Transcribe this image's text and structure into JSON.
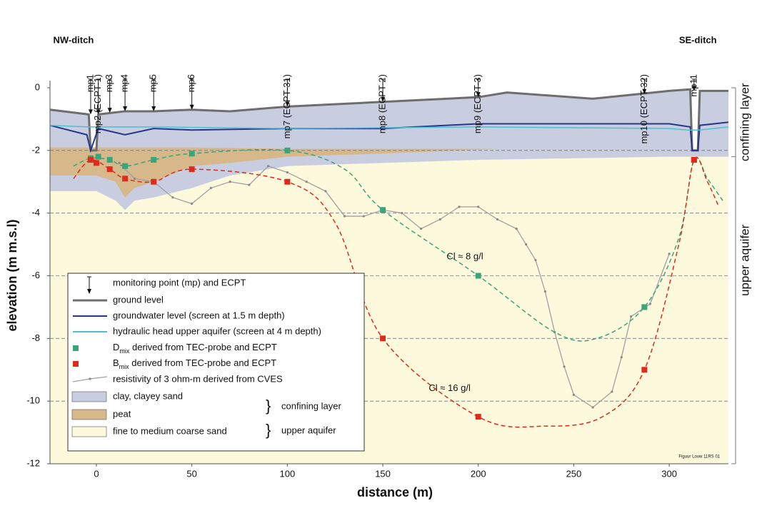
{
  "chart_data": {
    "type": "cross-section",
    "xlabel": "distance (m)",
    "ylabel": "elevation (m m.s.l)",
    "xlim": [
      -24.3,
      331
    ],
    "ylim": [
      -12,
      0
    ],
    "xticks": [
      0,
      50,
      100,
      150,
      200,
      250,
      300
    ],
    "yticks": [
      0,
      -2,
      -4,
      -6,
      -8,
      -10,
      -12
    ],
    "grid": true,
    "ditch_labels": [
      {
        "text": "NW-ditch",
        "x": -12
      },
      {
        "text": "SE-ditch",
        "x": 315
      }
    ],
    "monitoring_points": {
      "legend": "monitoring point (mp) and ECPT",
      "labels": [
        "mp1",
        "mp2 (ECPT-1)",
        "mp3",
        "mp4",
        "mp5",
        "mp6",
        "mp7 (ECPT-31)",
        "mp8 (ECPT-2)",
        "mp9 (ECPT-3)",
        "mp10 (ECPT-32)",
        "mp11"
      ],
      "x": [
        -3,
        1,
        7,
        15,
        30,
        50,
        100,
        150,
        200,
        287,
        313
      ],
      "values": [
        -0.85,
        -0.85,
        -0.8,
        -0.75,
        -0.75,
        -0.7,
        -0.6,
        -0.45,
        -0.3,
        -0.2,
        -0.1
      ]
    },
    "series": [
      {
        "name": "ground level",
        "kind": "line",
        "color": "#6e6e6e",
        "x": [
          -24.3,
          -4,
          -3,
          0,
          1,
          15,
          30,
          50,
          70,
          100,
          150,
          200,
          215,
          260,
          300,
          311,
          312,
          315,
          316,
          331
        ],
        "values": [
          -0.7,
          -0.85,
          -2,
          -2,
          -0.85,
          -0.75,
          -0.75,
          -0.7,
          -0.75,
          -0.6,
          -0.45,
          -0.3,
          -0.15,
          -0.35,
          -0.1,
          -0.05,
          -2,
          -2,
          -0.1,
          -0.1
        ]
      },
      {
        "name": "groundwater level (screen at 1.5 m depth)",
        "kind": "line",
        "color": "#27368a",
        "x": [
          -24.3,
          -5,
          -3,
          1,
          8,
          15,
          30,
          50,
          100,
          150,
          200,
          300,
          311,
          312,
          315,
          316,
          331
        ],
        "values": [
          -1.2,
          -1.5,
          -2,
          -1.3,
          -1.4,
          -1.5,
          -1.3,
          -1.35,
          -1.3,
          -1.3,
          -1.15,
          -1.15,
          -1.25,
          -2,
          -2,
          -1.2,
          -1.1
        ]
      },
      {
        "name": "hydraulic head upper aquifer (screen at 4 m depth)",
        "kind": "line",
        "color": "#4cc0d2",
        "x": [
          -24.3,
          -4,
          0,
          30,
          100,
          200,
          300,
          310,
          316,
          331
        ],
        "values": [
          -1.2,
          -1.25,
          -1.25,
          -1.25,
          -1.3,
          -1.25,
          -1.3,
          -1.35,
          -1.35,
          -1.25
        ]
      },
      {
        "name": [
          "D",
          "mix",
          " derived from TEC-probe and ECPT"
        ],
        "kind": "points",
        "color": "#3aa57a",
        "x": [
          -3,
          1,
          7,
          15,
          30,
          50,
          100,
          150,
          200,
          287,
          313
        ],
        "values": [
          -2.25,
          -2.2,
          -2.3,
          -2.5,
          -2.3,
          -2.1,
          -2.0,
          -3.9,
          -6.0,
          -7.0,
          -2.3
        ]
      },
      {
        "name": [
          "B",
          "mix",
          " derived from TEC-probe and ECPT"
        ],
        "kind": "points",
        "color": "#e02a1a",
        "x": [
          -3,
          0,
          7,
          15,
          30,
          50,
          100,
          150,
          200,
          287,
          313
        ],
        "values": [
          -2.3,
          -2.4,
          -2.6,
          -2.9,
          -3.0,
          -2.6,
          -3.0,
          -8.0,
          -10.5,
          -9.0,
          -2.3
        ]
      },
      {
        "name": "resistivity of 3 ohm-m derived from CVES",
        "kind": "dotline",
        "color": "#a0a0a0",
        "x": [
          12,
          20,
          30,
          40,
          50,
          60,
          70,
          80,
          90,
          100,
          110,
          120,
          130,
          140,
          150,
          160,
          170,
          180,
          190,
          200,
          210,
          220,
          225,
          230,
          235,
          240,
          245,
          250,
          260,
          270,
          275,
          280,
          290,
          300
        ],
        "values": [
          -2.4,
          -2.9,
          -3.0,
          -3.5,
          -3.7,
          -3.2,
          -3.0,
          -3.1,
          -2.5,
          -2.7,
          -3.0,
          -3.3,
          -4.1,
          -4.1,
          -3.9,
          -4.0,
          -4.5,
          -4.2,
          -3.8,
          -3.8,
          -4.2,
          -4.5,
          -5.0,
          -5.5,
          -6.5,
          -7.8,
          -8.9,
          -9.8,
          -10.2,
          -9.7,
          -8.6,
          -7.3,
          -6.9,
          -5.3
        ]
      },
      {
        "name": "clay, clayey sand",
        "kind": "area",
        "color": "#c8cde0",
        "x": [
          -24.3,
          -4,
          -3,
          0,
          1,
          15,
          30,
          50,
          70,
          100,
          150,
          200,
          215,
          260,
          300,
          311,
          312,
          315,
          316,
          331,
          331,
          300,
          250,
          200,
          150,
          100,
          70,
          50,
          30,
          20,
          15,
          10,
          0,
          -10,
          -24.3
        ],
        "values": [
          -0.7,
          -0.85,
          -2,
          -2,
          -0.85,
          -0.75,
          -0.75,
          -0.7,
          -0.75,
          -0.6,
          -0.45,
          -0.3,
          -0.15,
          -0.35,
          -0.1,
          -0.05,
          -2,
          -2,
          -0.1,
          -0.1,
          -2.2,
          -2.2,
          -2.25,
          -2.3,
          -2.4,
          -2.5,
          -2.8,
          -3.2,
          -3.5,
          -3.6,
          -3.9,
          -3.6,
          -3.3,
          -3.3,
          -3.3
        ]
      },
      {
        "name": "peat",
        "kind": "area",
        "color": "#d6b88a",
        "x": [
          -24.3,
          0,
          50,
          100,
          150,
          210,
          150,
          100,
          70,
          50,
          30,
          20,
          15,
          10,
          0,
          -24.3
        ],
        "values": [
          -1.9,
          -1.9,
          -1.9,
          -1.95,
          -1.95,
          -1.95,
          -2.1,
          -2.2,
          -2.4,
          -2.5,
          -3.0,
          -3.2,
          -3.5,
          -3.0,
          -2.8,
          -2.8
        ]
      },
      {
        "name": "fine to medium coarse sand",
        "kind": "area",
        "color": "#fdf9dc",
        "x": [
          -24.3,
          331,
          331,
          -24.3
        ],
        "values": [
          -1.9,
          -1.9,
          -12,
          -12
        ]
      }
    ],
    "mixing_curves": [
      {
        "color": "#3aa57a",
        "x": [
          -12,
          -3,
          7,
          15,
          30,
          50,
          100,
          130,
          150,
          200,
          240,
          262,
          287,
          305,
          313,
          320,
          328
        ],
        "values": [
          -2.5,
          -2.25,
          -2.3,
          -2.5,
          -2.3,
          -2.1,
          -2.0,
          -2.6,
          -3.9,
          -6.0,
          -7.8,
          -8.0,
          -7.0,
          -4.8,
          -2.3,
          -2.9,
          -3.6
        ]
      },
      {
        "color": "#e02a1a",
        "x": [
          -12,
          -3,
          7,
          15,
          30,
          50,
          100,
          125,
          150,
          200,
          235,
          265,
          287,
          305,
          313,
          320,
          326
        ],
        "values": [
          -2.9,
          -2.3,
          -2.6,
          -2.9,
          -3.0,
          -2.6,
          -3.0,
          -4.3,
          -8.0,
          -10.5,
          -10.8,
          -10.5,
          -9.0,
          -5.0,
          -2.3,
          -3.0,
          -3.8
        ]
      }
    ],
    "annotations": [
      {
        "text": "Cl ≈ 8 g/l",
        "x": 193,
        "y": -5.4
      },
      {
        "text": "Cl ≈ 16 g/l",
        "x": 185,
        "y": -9.6
      }
    ],
    "layer_groups": [
      "confining layer",
      "upper aquifer"
    ],
    "right_axis": {
      "labels": [
        "confining layer",
        "upper aquifer"
      ],
      "bounds": [
        0,
        -2.2,
        -12
      ]
    },
    "credit": "Figuur Louw 11RS 01"
  }
}
